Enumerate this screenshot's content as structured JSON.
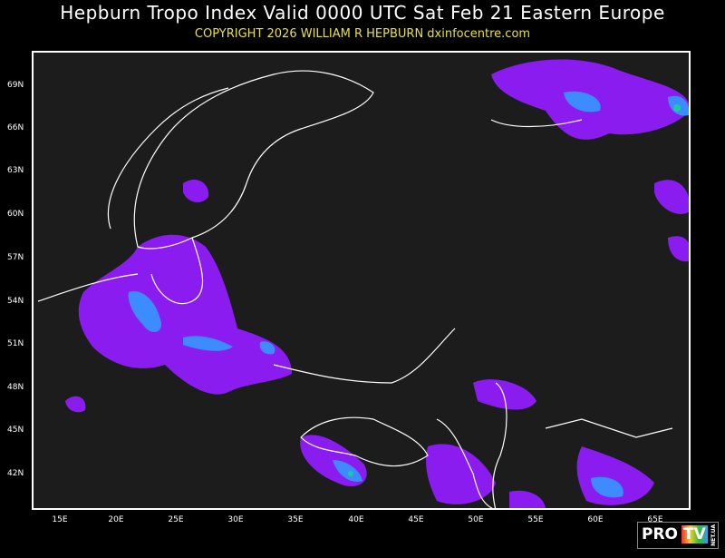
{
  "header": {
    "title": "Hepburn Tropo Index Valid 0000 UTC Sat Feb 21 Eastern Europe",
    "copyright": "COPYRIGHT 2026   WILLIAM R HEPBURN   dxinfocentre.com"
  },
  "map": {
    "lat_labels": [
      "69N",
      "66N",
      "63N",
      "60N",
      "57N",
      "54N",
      "51N",
      "48N",
      "45N",
      "42N"
    ],
    "lon_labels": [
      "15E",
      "20E",
      "25E",
      "30E",
      "35E",
      "40E",
      "45E",
      "50E",
      "55E",
      "60E",
      "65E"
    ],
    "colors": {
      "background": "#1c1c1c",
      "coastline": "#ffffff",
      "index_low": "#8a1cf0",
      "index_mid": "#3c8cff",
      "index_high": "#20c8a0"
    }
  },
  "logo": {
    "text_pro": "PRO",
    "text_tv": "TV",
    "text_net": "NET.UA"
  }
}
